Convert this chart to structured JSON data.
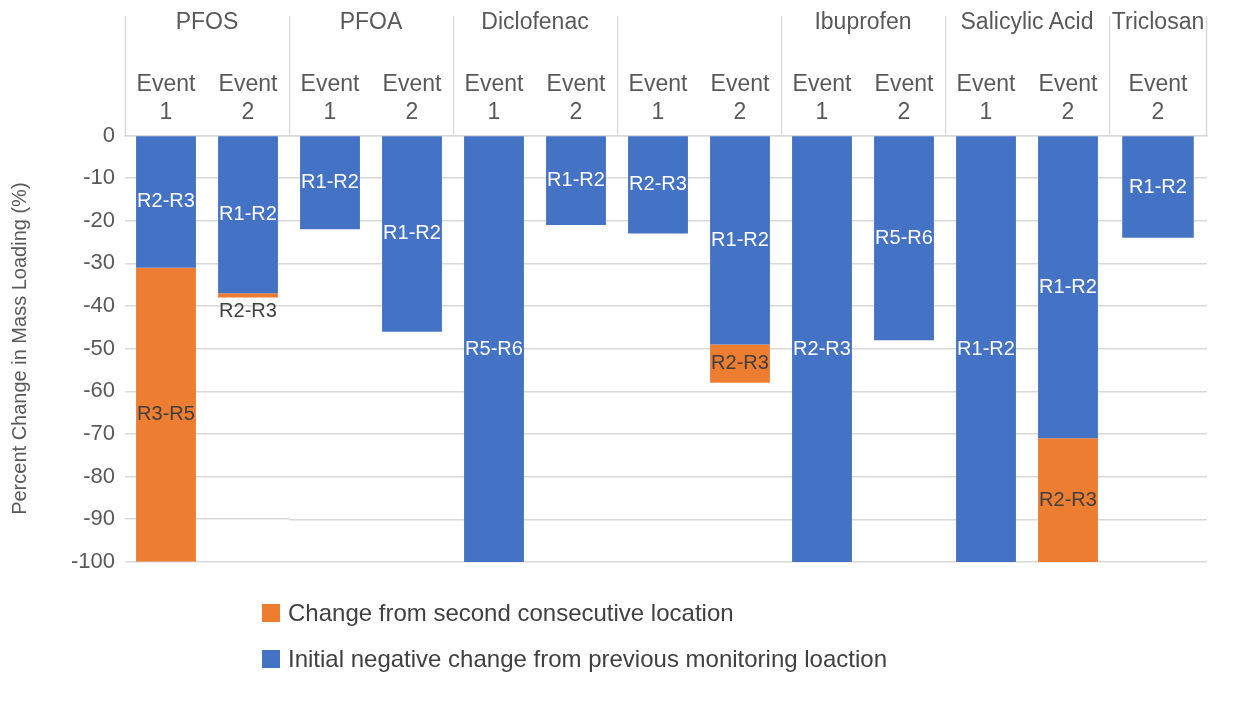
{
  "chart_data": [
    {
      "type": "bar",
      "title": "PFOS",
      "ylabel": "Percent Change in Mass Loading (%)",
      "categories": [
        "Event 1",
        "Event 2"
      ],
      "stacked": true,
      "ylim": [
        -100,
        0
      ],
      "yticks": [
        -100,
        -90,
        -80,
        -70,
        -60,
        -50,
        -40,
        -30,
        -20,
        -10,
        0
      ],
      "grid": "y",
      "legend": "bottom",
      "series": [
        {
          "name": "Initial negative change from previous monitoring loaction",
          "color": "#4472c4",
          "values": [
            -31,
            -37
          ],
          "value_labels": [
            "R2-R3",
            "R1-R2"
          ]
        },
        {
          "name": "Change from second consecutive location",
          "color": "#ed7d31",
          "values": [
            -69,
            -1
          ],
          "value_labels": [
            "R3-R5",
            "R2-R3"
          ]
        }
      ]
    },
    {
      "type": "bar",
      "title": "PFOA",
      "categories": [
        "Event 1",
        "Event 2"
      ],
      "stacked": true,
      "ylim": [
        -100,
        0
      ],
      "yticks": [
        -100,
        -90,
        -80,
        -70,
        -60,
        -50,
        -40,
        -30,
        -20,
        -10,
        0
      ],
      "grid": "y",
      "tick_labels": "x",
      "series": [
        {
          "color": "#4472c4",
          "values": [
            -22,
            -46
          ],
          "value_labels": [
            "R1-R2",
            "R1-R2"
          ]
        }
      ]
    },
    {
      "type": "bar",
      "title": "Diclofenac",
      "categories": [
        "Event 1",
        "Event 2"
      ],
      "stacked": true,
      "ylim": [
        -100,
        0
      ],
      "yticks": [
        -100,
        -90,
        -80,
        -70,
        -60,
        -50,
        -40,
        -30,
        -20,
        -10,
        0
      ],
      "grid": "y",
      "tick_labels": "x",
      "series": [
        {
          "color": "#4472c4",
          "values": [
            -100,
            -21
          ],
          "value_labels": [
            "R5-R6",
            "R1-R2"
          ]
        }
      ]
    },
    {
      "type": "bar",
      "categories": [
        "Event 1",
        "Event 2"
      ],
      "stacked": true,
      "ylim": [
        -100,
        0
      ],
      "yticks": [
        -100,
        -90,
        -80,
        -70,
        -60,
        -50,
        -40,
        -30,
        -20,
        -10,
        0
      ],
      "grid": "y",
      "tick_labels": "x",
      "series": [
        {
          "color": "#4472c4",
          "values": [
            -23,
            -49
          ],
          "value_labels": [
            "R2-R3",
            "R1-R2"
          ]
        },
        {
          "color": "#ed7d31",
          "values": [
            null,
            -9
          ],
          "value_labels": [
            null,
            "R2-R3"
          ]
        }
      ]
    },
    {
      "type": "bar",
      "title": "Ibuprofen",
      "categories": [
        "Event 1",
        "Event 2"
      ],
      "stacked": true,
      "ylim": [
        -100,
        0
      ],
      "yticks": [
        -100,
        -90,
        -80,
        -70,
        -60,
        -50,
        -40,
        -30,
        -20,
        -10,
        0
      ],
      "grid": "y",
      "tick_labels": "x",
      "series": [
        {
          "color": "#4472c4",
          "values": [
            -100,
            -48
          ],
          "value_labels": [
            "R2-R3",
            "R5-R6"
          ]
        }
      ]
    },
    {
      "type": "bar",
      "title": "Salicylic Acid",
      "categories": [
        "Event 1",
        "Event 2"
      ],
      "stacked": true,
      "ylim": [
        -100,
        0
      ],
      "yticks": [
        -100,
        -90,
        -80,
        -70,
        -60,
        -50,
        -40,
        -30,
        -20,
        -10,
        0
      ],
      "grid": "y",
      "tick_labels": "x",
      "series": [
        {
          "color": "#4472c4",
          "values": [
            -100,
            -71
          ],
          "value_labels": [
            "R1-R2",
            "R1-R2"
          ]
        },
        {
          "color": "#ed7d31",
          "values": [
            null,
            -29
          ],
          "value_labels": [
            null,
            "R2-R3"
          ]
        }
      ]
    },
    {
      "type": "bar",
      "title": "Triclosan",
      "categories": [
        "Event 2"
      ],
      "stacked": true,
      "ylim": [
        -100,
        0
      ],
      "yticks": [
        -100,
        -90,
        -80,
        -70,
        -60,
        -50,
        -40,
        -30,
        -20,
        -10,
        0
      ],
      "grid": "y",
      "tick_labels": "x",
      "series": [
        {
          "color": "#4472c4",
          "values": [
            -24
          ],
          "value_labels": [
            "R1-R2"
          ]
        }
      ]
    }
  ]
}
